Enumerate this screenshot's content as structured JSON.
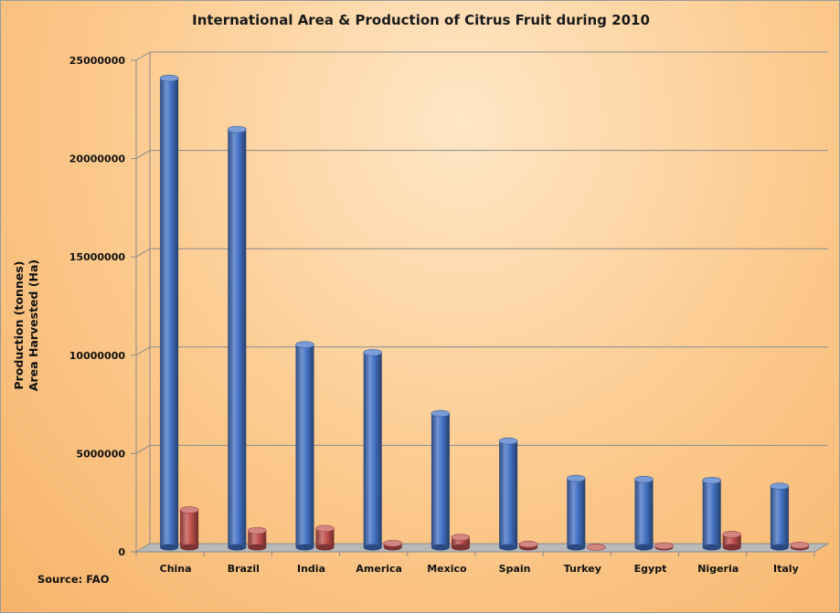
{
  "chart_data": {
    "type": "bar",
    "title": "International Area & Production of Citrus Fruit during 2010",
    "ylabel_lines": [
      "Production (tonnes)",
      "Area Harvested (Ha)"
    ],
    "xlabel": "",
    "source": "Source: FAO",
    "categories": [
      "China",
      "Brazil",
      "India",
      "America",
      "Mexico",
      "Spain",
      "Turkey",
      "Egypt",
      "Nigeria",
      "Italy"
    ],
    "series": [
      {
        "color": "#4472c4",
        "values": [
          23900000,
          21300000,
          10350000,
          9950000,
          6850000,
          5450000,
          3550000,
          3500000,
          3450000,
          3150000
        ]
      },
      {
        "color": "#c0504d",
        "values": [
          1950000,
          900000,
          1000000,
          250000,
          550000,
          200000,
          50000,
          120000,
          700000,
          150000
        ]
      }
    ],
    "yticks": [
      "0",
      "5000000",
      "10000000",
      "15000000",
      "20000000",
      "25000000"
    ],
    "ylim": [
      0,
      25000000
    ],
    "grid": true
  }
}
